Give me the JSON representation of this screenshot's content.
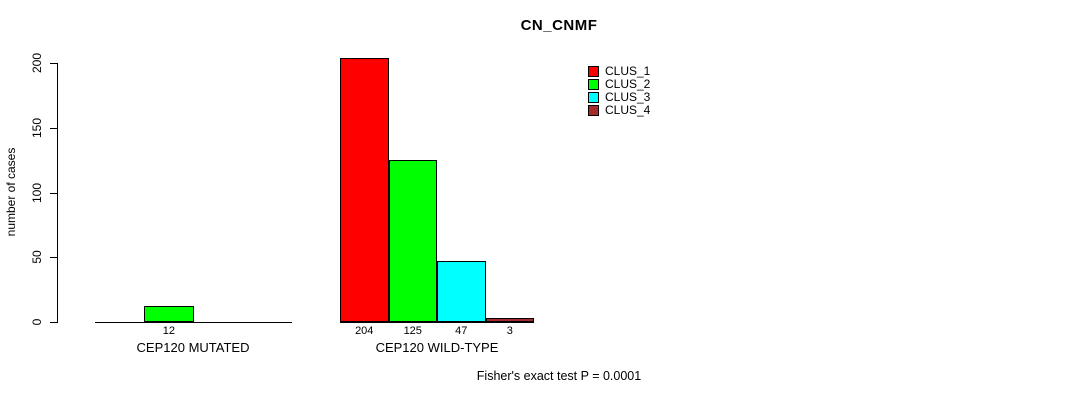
{
  "chart_data": {
    "type": "bar",
    "title": "CN_CNMF",
    "ylabel": "number of cases",
    "xlabel": "",
    "ylim": [
      0,
      200
    ],
    "yticks": [
      0,
      50,
      100,
      150,
      200
    ],
    "grid": false,
    "legend_position": "upper-right",
    "categories": [
      "CEP120 MUTATED",
      "CEP120 WILD-TYPE"
    ],
    "series": [
      {
        "name": "CLUS_1",
        "color": "#ff0000",
        "values": [
          0,
          204
        ]
      },
      {
        "name": "CLUS_2",
        "color": "#00ff00",
        "values": [
          12,
          125
        ]
      },
      {
        "name": "CLUS_3",
        "color": "#00ffff",
        "values": [
          0,
          47
        ]
      },
      {
        "name": "CLUS_4",
        "color": "#a52a2a",
        "values": [
          0,
          3
        ]
      }
    ],
    "annotation": "Fisher's exact test P = 0.0001"
  }
}
